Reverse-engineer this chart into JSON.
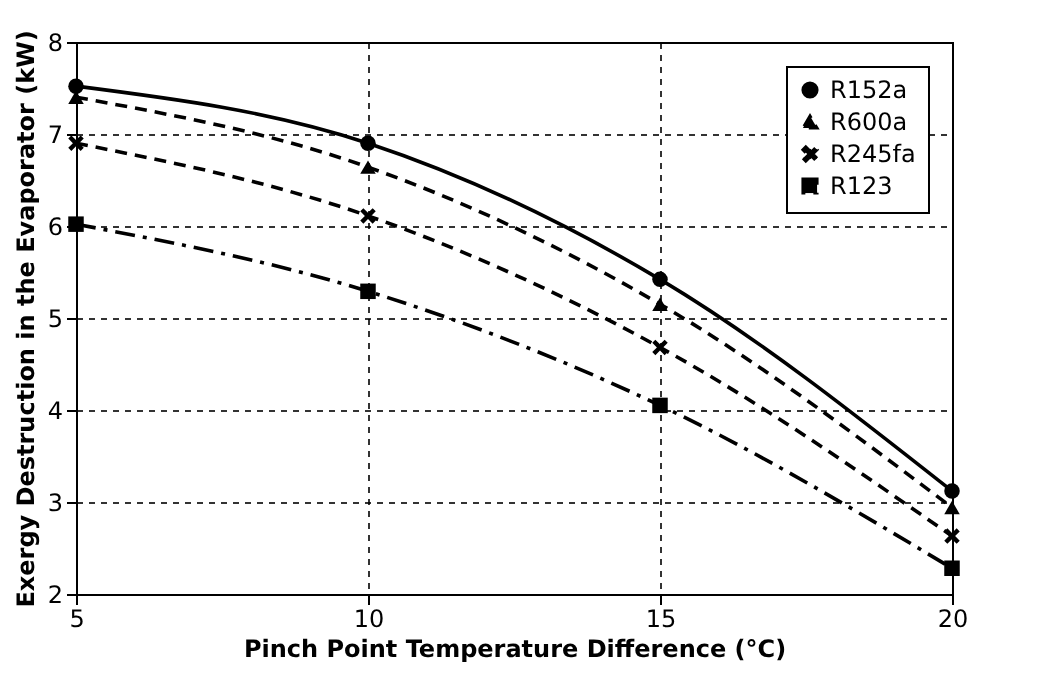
{
  "chart_data": {
    "type": "line",
    "xlabel": "Pinch Point Temperature Difference (°C)",
    "ylabel": "Exergy Destruction in the Evaporator\n(kW)",
    "x": [
      5,
      10,
      15,
      20
    ],
    "xlim": [
      5,
      20
    ],
    "xticks": [
      5,
      10,
      15,
      20
    ],
    "ylim": [
      2,
      8
    ],
    "yticks": [
      2,
      3,
      4,
      5,
      6,
      7,
      8
    ],
    "grid": true,
    "legend": "top right",
    "series": [
      {
        "name": "R152a",
        "color": "#000000",
        "marker": "circle",
        "line_style": "solid",
        "values": [
          7.52,
          6.9,
          5.42,
          3.12
        ]
      },
      {
        "name": "R600a",
        "color": "#000000",
        "marker": "triangle",
        "line_style": "dashed",
        "values": [
          7.4,
          6.64,
          5.15,
          2.94
        ]
      },
      {
        "name": "R245fa",
        "color": "#000000",
        "marker": "cross",
        "line_style": "dashed",
        "values": [
          6.9,
          6.11,
          4.68,
          2.63
        ]
      },
      {
        "name": "R123",
        "color": "#000000",
        "marker": "square",
        "line_style": "dashdot",
        "values": [
          6.02,
          5.29,
          4.05,
          2.28
        ]
      }
    ]
  }
}
